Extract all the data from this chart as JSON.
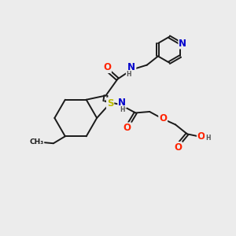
{
  "bg_color": "#ececec",
  "bond_color": "#1a1a1a",
  "bond_width": 1.4,
  "atom_colors": {
    "N": "#0000cc",
    "O": "#ff2200",
    "S": "#bbbb00",
    "C": "#1a1a1a",
    "H": "#555555"
  },
  "font_size": 7.5,
  "figsize": [
    3.0,
    3.0
  ],
  "dpi": 100
}
